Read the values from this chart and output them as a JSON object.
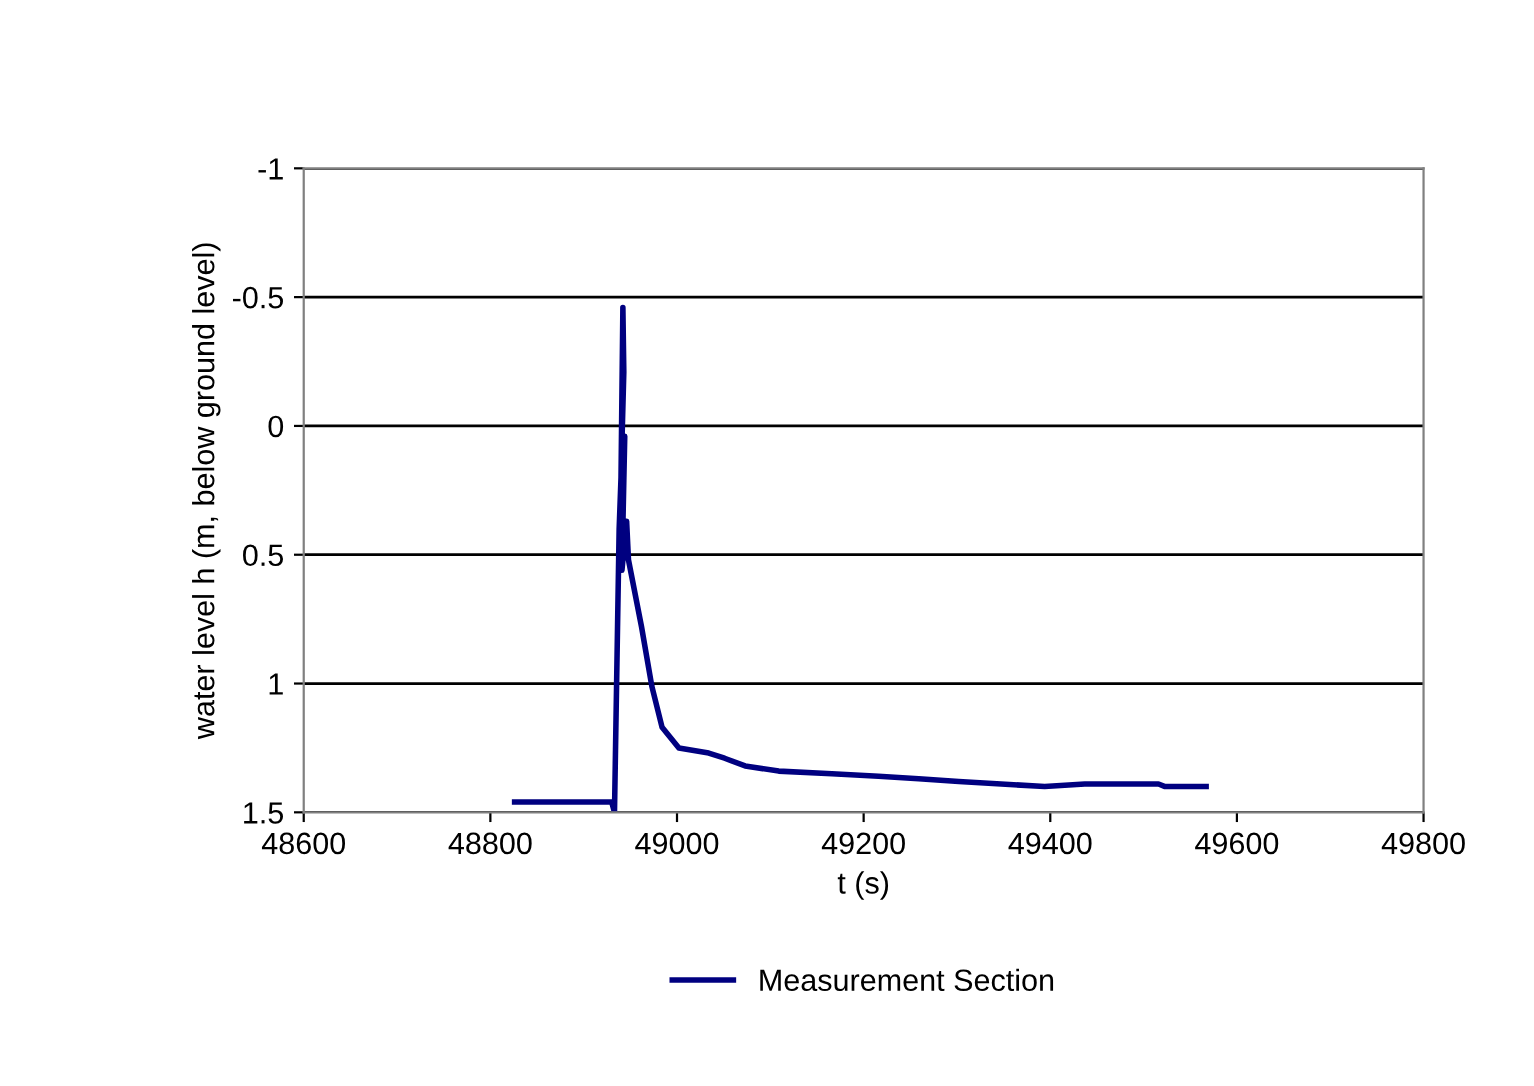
{
  "chart_data": {
    "type": "line",
    "xlabel": "t (s)",
    "ylabel": "water level h (m, below ground level)",
    "x": [
      48826,
      48930,
      48933,
      48938,
      48940,
      48942,
      48943,
      48940,
      48944,
      48941,
      48946,
      48948,
      48962,
      48973,
      48984,
      49002,
      49034,
      49051,
      49073,
      49109,
      49166,
      49216,
      49259,
      49302,
      49394,
      49437,
      49516,
      49523,
      49567
    ],
    "series": [
      {
        "name": "Measurement Section",
        "color": "#000080",
        "values": [
          1.46,
          1.46,
          1.5,
          0.4,
          0.2,
          -0.46,
          -0.21,
          0.2,
          0.04,
          0.56,
          0.37,
          0.52,
          0.78,
          1.01,
          1.17,
          1.25,
          1.27,
          1.29,
          1.32,
          1.34,
          1.35,
          1.36,
          1.37,
          1.38,
          1.4,
          1.39,
          1.39,
          1.4,
          1.4
        ]
      }
    ],
    "xlim": [
      48600,
      49800
    ],
    "xticks": [
      48600,
      48800,
      49000,
      49200,
      49400,
      49600,
      49800
    ],
    "ylim": [
      1.5,
      -1
    ],
    "yticks": [
      1.5,
      1,
      0.5,
      0,
      -0.5,
      -1
    ],
    "grid": "y",
    "legend": "bottom",
    "marker": "none",
    "line_style": "solid"
  }
}
